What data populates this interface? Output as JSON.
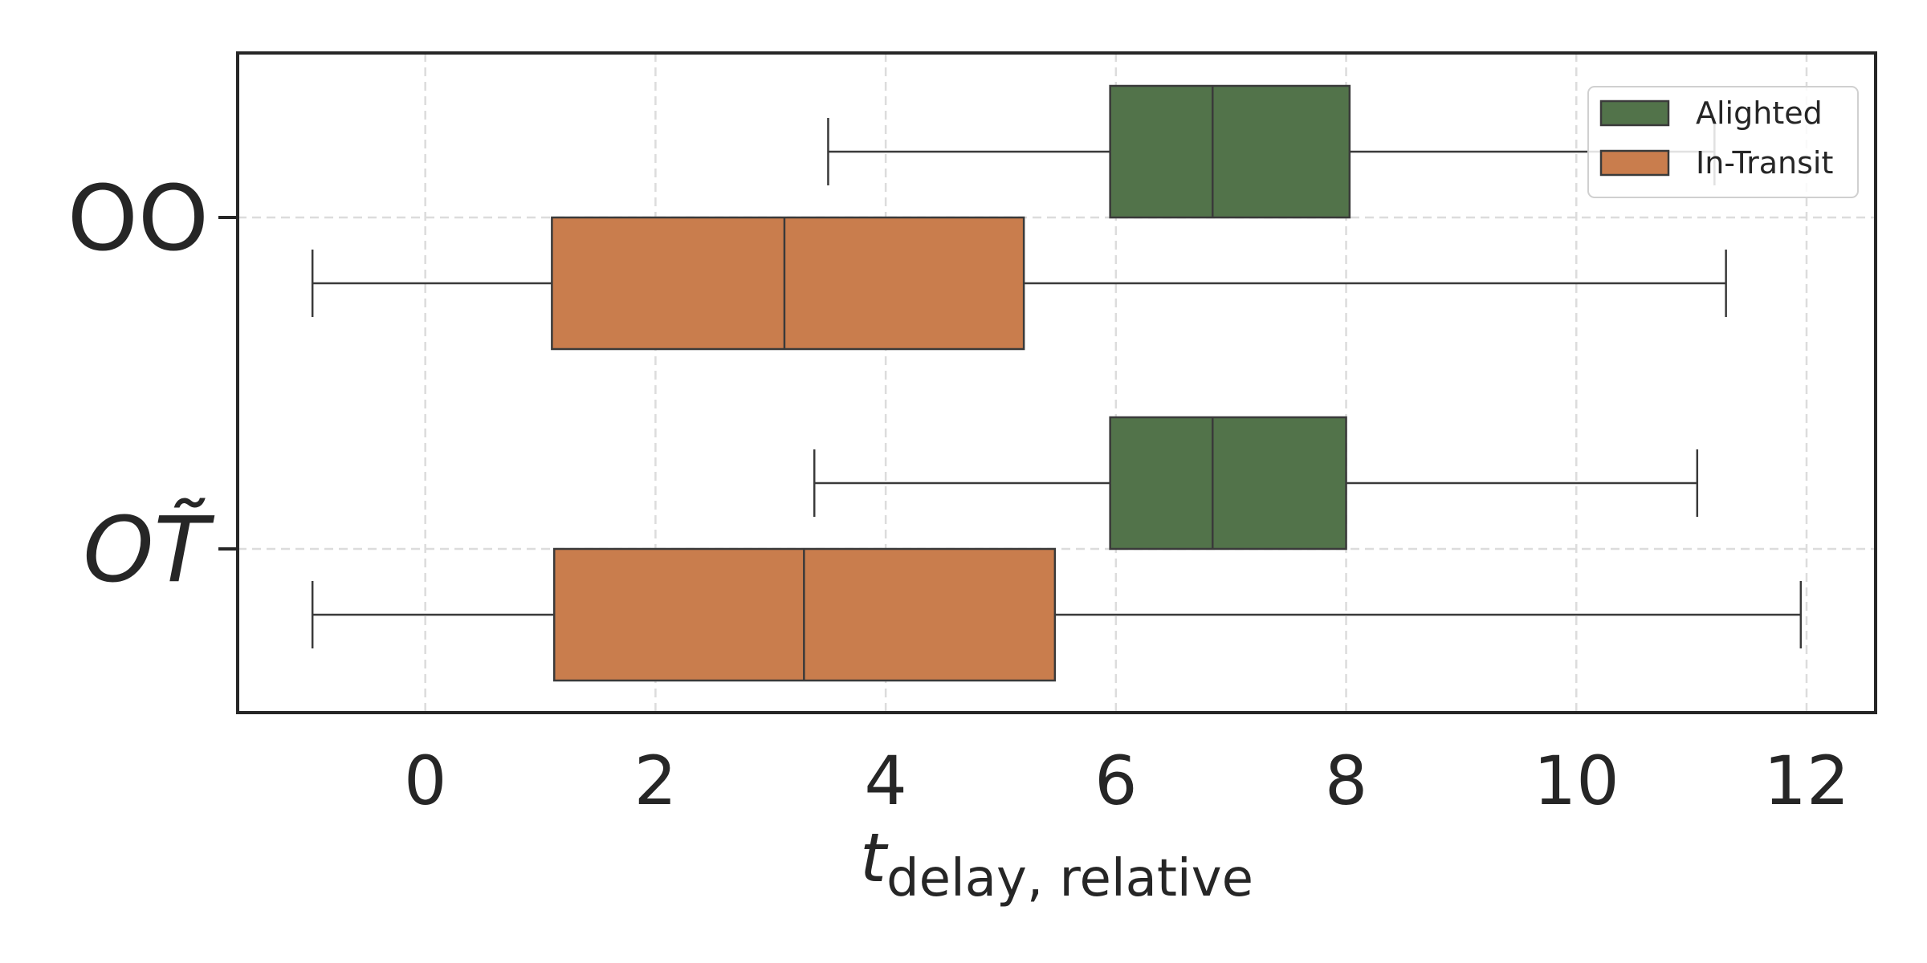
{
  "chart_data": {
    "type": "boxplot",
    "orientation": "horizontal",
    "categories": [
      {
        "label": "OO",
        "italic": false
      },
      {
        "label": "OT̃",
        "italic": true
      }
    ],
    "xlabel": {
      "main": "t",
      "subscript": "delay, relative"
    },
    "ylabel": "",
    "xlim": [
      -1.63,
      12.6
    ],
    "xticks": [
      0,
      2,
      4,
      6,
      8,
      10,
      12
    ],
    "grid": true,
    "legend_position": "top-right",
    "series": [
      {
        "name": "Alighted",
        "color": "#52734a",
        "boxes": [
          {
            "whisker_low": 3.5,
            "q1": 5.95,
            "median": 6.84,
            "q3": 8.03,
            "whisker_high": 11.2
          },
          {
            "whisker_low": 3.38,
            "q1": 5.95,
            "median": 6.84,
            "q3": 8.0,
            "whisker_high": 11.05
          }
        ]
      },
      {
        "name": "In-Transit",
        "color": "#c97d4d",
        "boxes": [
          {
            "whisker_low": -0.98,
            "q1": 1.1,
            "median": 3.12,
            "q3": 5.2,
            "whisker_high": 11.3
          },
          {
            "whisker_low": -0.98,
            "q1": 1.12,
            "median": 3.29,
            "q3": 5.47,
            "whisker_high": 11.95
          }
        ]
      }
    ]
  }
}
